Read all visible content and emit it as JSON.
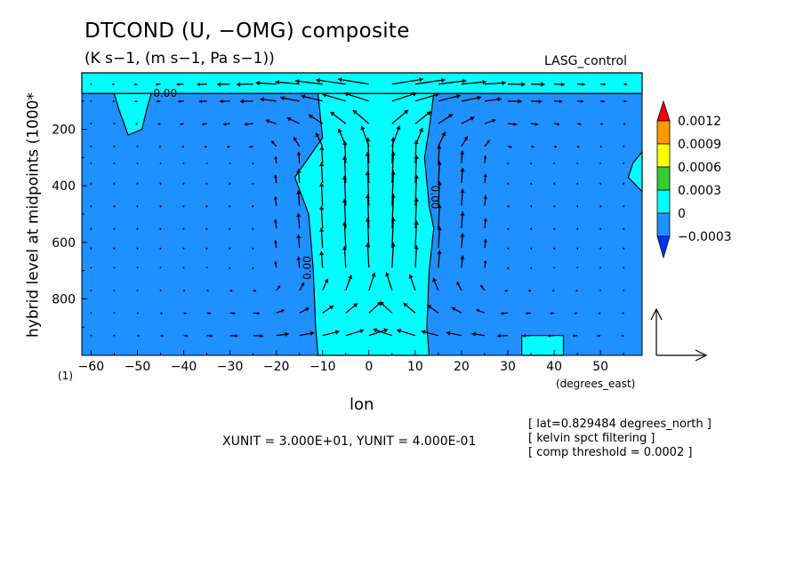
{
  "title": "DTCOND (U, −OMG) composite",
  "subtitle": "(K s−1, (m s−1, Pa s−1))",
  "case_label": "LASG_control",
  "y_axis_label": "hybrid level at midpoints (1000*",
  "x_axis_label": "lon",
  "x_units_label": "(degrees_east)",
  "y_unit_marker": "(1)",
  "vector_scale_text": "XUNIT = 3.000E+01, YUNIT = 4.000E-01",
  "notes": [
    "[ lat=0.829484 degrees_north ]",
    "[ kelvin spct filtering ]",
    "[ comp threshold = 0.0002 ]"
  ],
  "colors": {
    "negative_fill": "#1e90ff",
    "band_0_0003": "#00ffff",
    "band_0_0006": "#33cc33",
    "band_0_0009": "#ffff00",
    "band_0_0012": "#ff9900",
    "above_max": "#ff0000",
    "below_min": "#0033ff"
  },
  "chart_data": {
    "type": "contour",
    "xlim": [
      -62,
      59
    ],
    "ylim": [
      1000,
      0
    ],
    "x_ticks": [
      -60,
      -50,
      -40,
      -30,
      -20,
      -10,
      0,
      10,
      20,
      30,
      40,
      50
    ],
    "y_ticks": [
      200,
      400,
      600,
      800
    ],
    "contour_labels": [
      "0.00",
      "0.00",
      "0.00"
    ],
    "colorbar": {
      "labels": [
        "0.0012",
        "0.0009",
        "0.0006",
        "0.0003",
        "0",
        "−0.0003"
      ]
    },
    "positive_regions": [
      {
        "name": "central-updraft-region",
        "outline": [
          [
            -11,
            1000
          ],
          [
            -11.5,
            900
          ],
          [
            -12,
            700
          ],
          [
            -13,
            500
          ],
          [
            -16,
            370
          ],
          [
            -13,
            300
          ],
          [
            -10,
            230
          ],
          [
            -11,
            73
          ],
          [
            14,
            73
          ],
          [
            13,
            200
          ],
          [
            12,
            300
          ],
          [
            13,
            470
          ],
          [
            14,
            550
          ],
          [
            13,
            700
          ],
          [
            12.5,
            900
          ],
          [
            13,
            1000
          ]
        ]
      },
      {
        "name": "top-layer-region",
        "outline": [
          [
            -62,
            0
          ],
          [
            59,
            0
          ],
          [
            59,
            73
          ],
          [
            -62,
            73
          ]
        ]
      },
      {
        "name": "upper-left-lobe",
        "outline": [
          [
            -55,
            73
          ],
          [
            -54,
            130
          ],
          [
            -52,
            220
          ],
          [
            -49,
            200
          ],
          [
            -48,
            130
          ],
          [
            -47,
            73
          ]
        ]
      },
      {
        "name": "right-edge-lobe",
        "outline": [
          [
            59,
            280
          ],
          [
            57,
            320
          ],
          [
            56,
            370
          ],
          [
            59,
            420
          ]
        ]
      },
      {
        "name": "bottom-box",
        "outline": [
          [
            33,
            1000
          ],
          [
            33,
            930
          ],
          [
            42,
            930
          ],
          [
            42,
            1000
          ]
        ]
      }
    ],
    "vector_field": {
      "u_scale": 30,
      "w_scale": 0.4,
      "columns": [
        -60,
        -55,
        -50,
        -45,
        -40,
        -35,
        -30,
        -25,
        -20,
        -15,
        -10,
        -5,
        0,
        5,
        10,
        15,
        20,
        25,
        30,
        35,
        40,
        45,
        50,
        55
      ],
      "rows": [
        40,
        100,
        180,
        260,
        320,
        390,
        470,
        550,
        620,
        690,
        770,
        850,
        930
      ],
      "description": "convergent low-level flow into a central updraft near 0-10 E, divergent outflow aloft",
      "u_params": {
        "center_lon": 3,
        "halfwidth": 25,
        "low_max": 7,
        "upper_max": 10
      },
      "w_params": {
        "center_lon": 3,
        "peak": 0.42,
        "mid_level": 500,
        "width": 14
      }
    }
  }
}
